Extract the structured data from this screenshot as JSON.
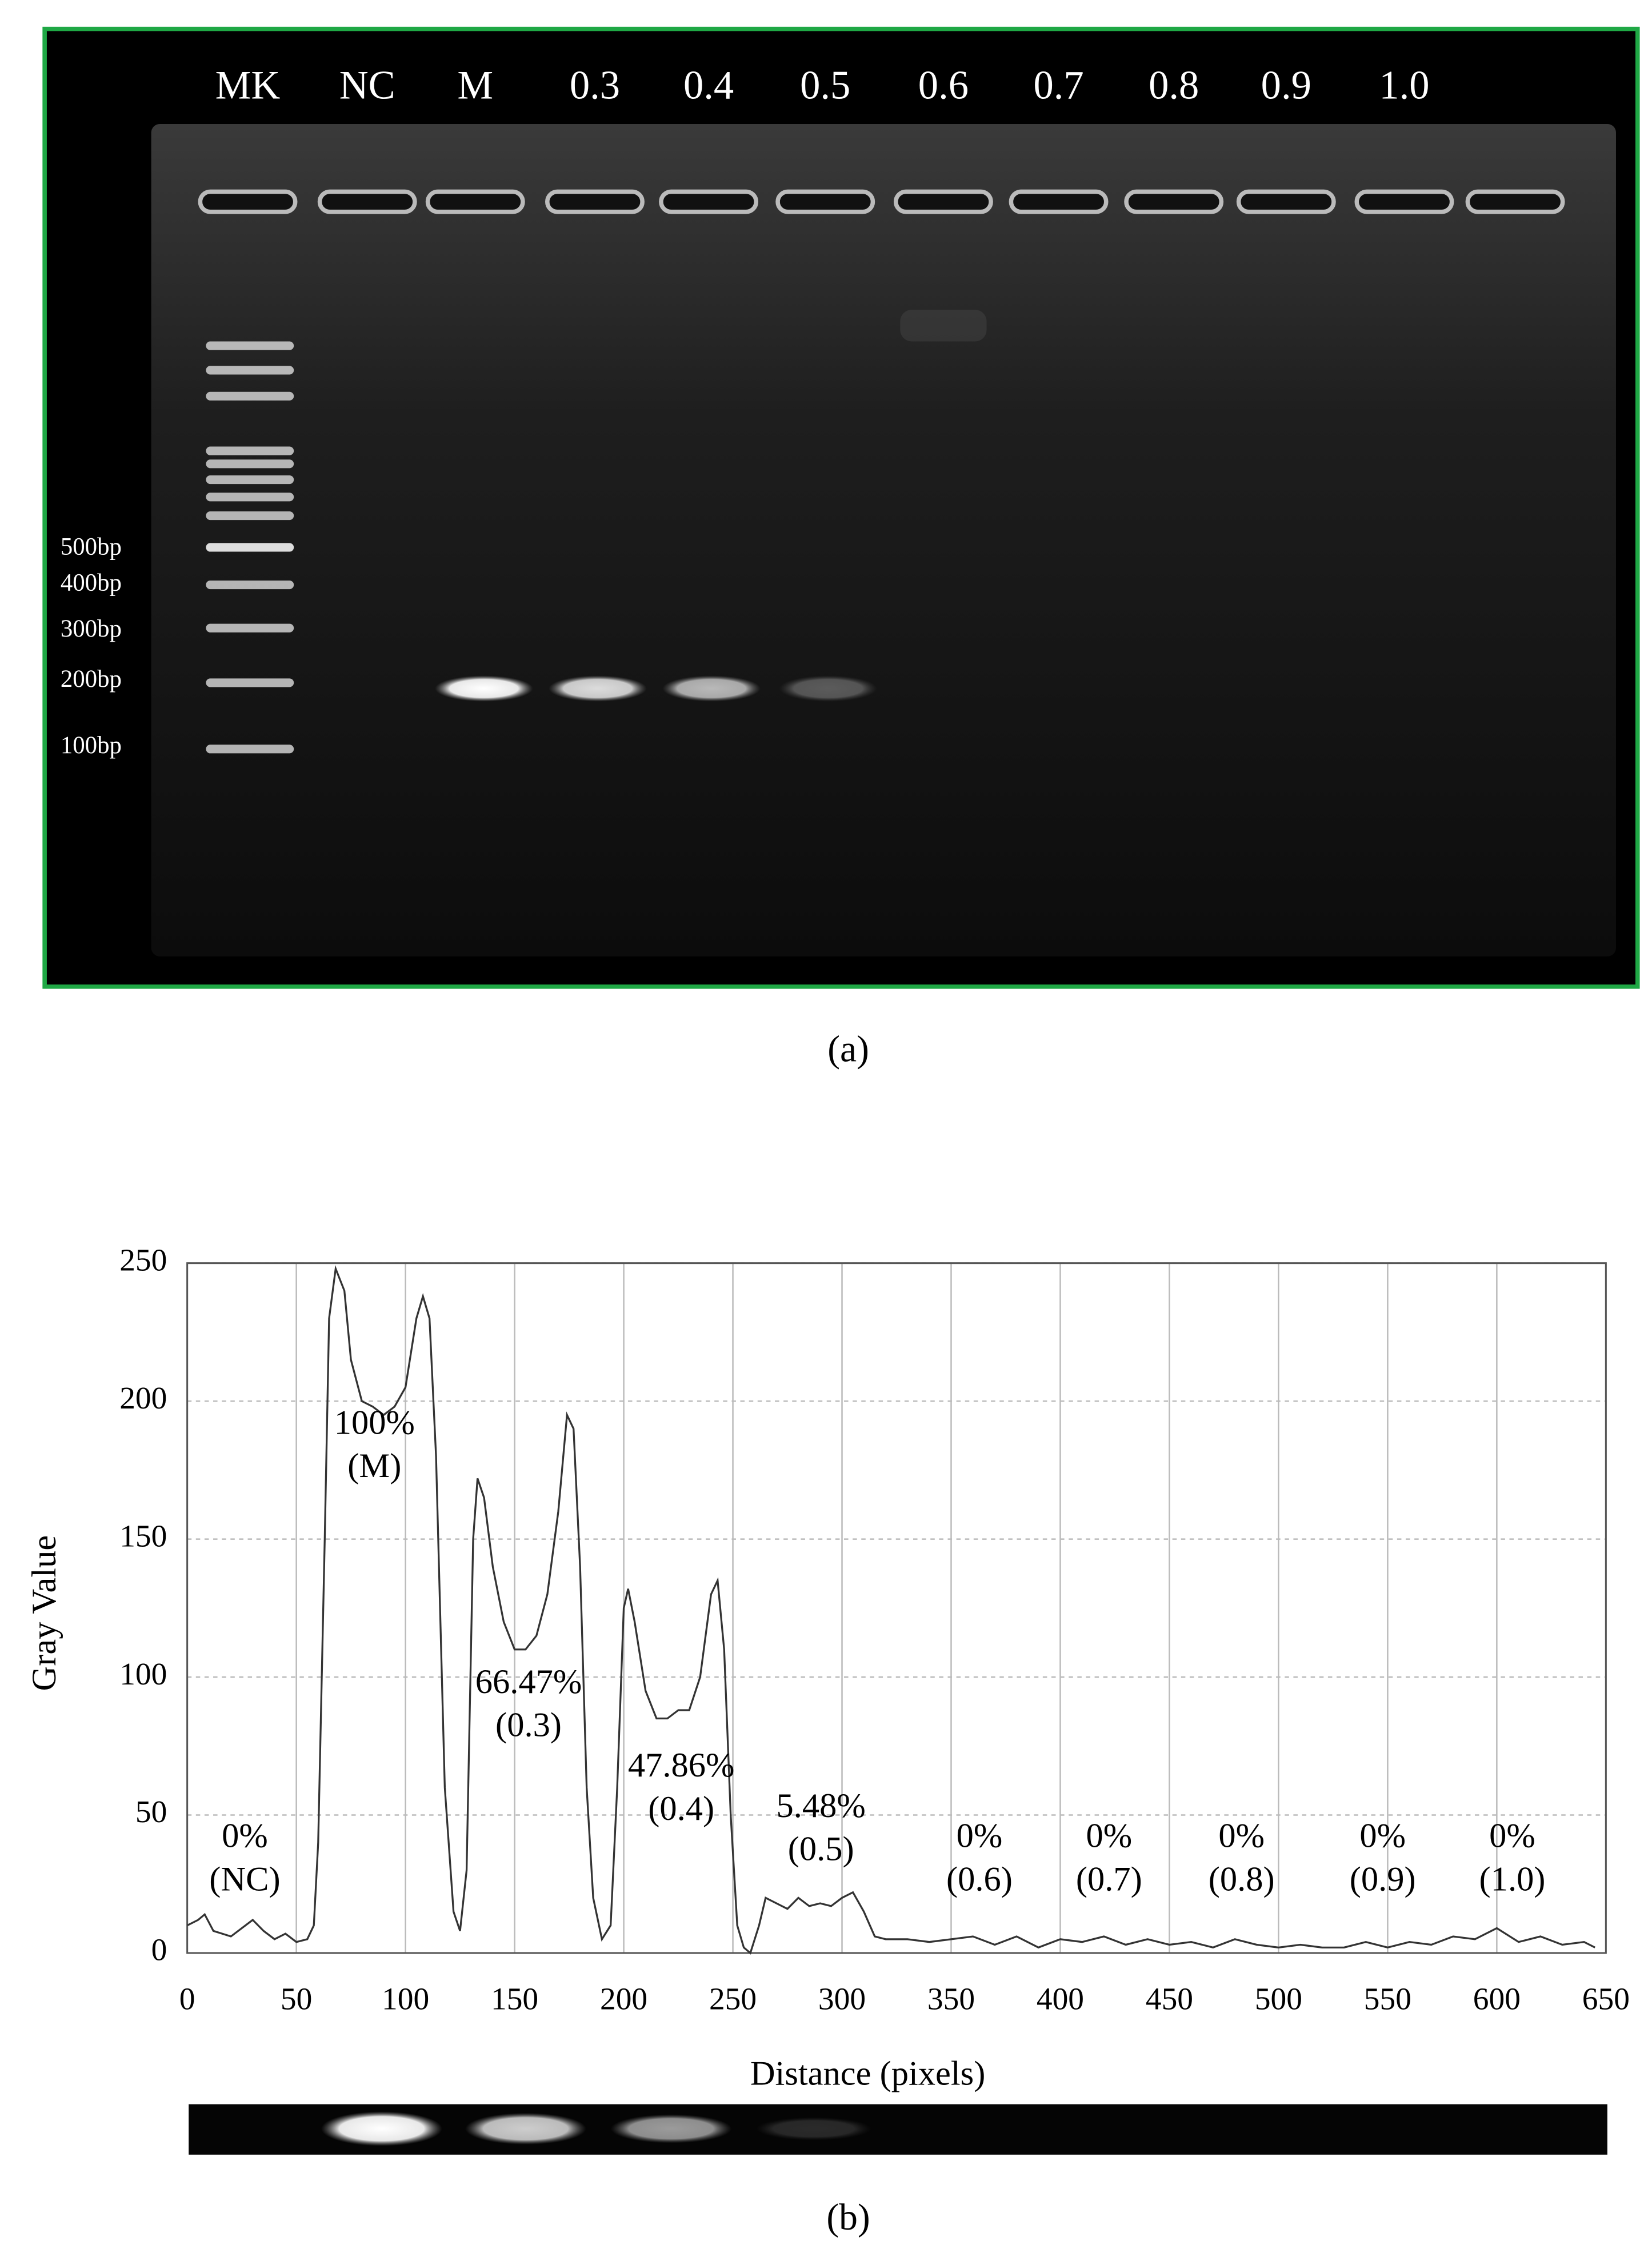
{
  "gel": {
    "lane_labels": [
      "MK",
      "NC",
      "M",
      "0.3",
      "0.4",
      "0.5",
      "0.6",
      "0.7",
      "0.8",
      "0.9",
      "1.0"
    ],
    "size_labels": [
      "500bp",
      "400bp",
      "300bp",
      "200bp",
      "100bp"
    ],
    "caption": "(a)"
  },
  "chart_data": {
    "type": "line",
    "x_label": "Distance (pixels)",
    "y_label": "Gray Value",
    "caption": "(b)",
    "color": "#333333",
    "grid": true,
    "xlim": [
      0,
      650
    ],
    "ylim": [
      0,
      250
    ],
    "xticks": [
      0,
      50,
      100,
      150,
      200,
      250,
      300,
      350,
      400,
      450,
      500,
      550,
      600,
      650
    ],
    "yticks": [
      0,
      50,
      100,
      150,
      200,
      250
    ],
    "x": [
      0,
      5,
      8,
      12,
      20,
      30,
      35,
      40,
      45,
      50,
      55,
      58,
      60,
      63,
      65,
      68,
      72,
      75,
      80,
      85,
      90,
      95,
      100,
      105,
      108,
      111,
      114,
      118,
      122,
      125,
      128,
      131,
      133,
      136,
      140,
      145,
      150,
      155,
      160,
      165,
      170,
      174,
      177,
      180,
      183,
      186,
      190,
      194,
      197,
      200,
      202,
      205,
      210,
      215,
      220,
      225,
      230,
      235,
      240,
      243,
      246,
      249,
      252,
      255,
      258,
      262,
      265,
      270,
      275,
      280,
      285,
      290,
      295,
      300,
      305,
      310,
      315,
      320,
      330,
      340,
      350,
      360,
      370,
      380,
      390,
      400,
      410,
      420,
      430,
      440,
      450,
      460,
      470,
      480,
      490,
      500,
      510,
      520,
      530,
      540,
      550,
      560,
      570,
      580,
      590,
      600,
      610,
      620,
      630,
      640,
      645
    ],
    "values": [
      10,
      12,
      14,
      8,
      6,
      12,
      8,
      5,
      7,
      4,
      5,
      10,
      40,
      150,
      230,
      248,
      240,
      215,
      200,
      198,
      195,
      198,
      205,
      230,
      238,
      230,
      180,
      60,
      15,
      8,
      30,
      150,
      172,
      165,
      140,
      120,
      110,
      110,
      115,
      130,
      160,
      195,
      190,
      140,
      60,
      20,
      5,
      10,
      60,
      125,
      132,
      120,
      95,
      85,
      85,
      88,
      88,
      100,
      130,
      135,
      110,
      50,
      10,
      2,
      0,
      10,
      20,
      18,
      16,
      20,
      17,
      18,
      17,
      20,
      22,
      15,
      6,
      5,
      5,
      4,
      5,
      6,
      3,
      6,
      2,
      5,
      4,
      6,
      3,
      5,
      3,
      4,
      2,
      5,
      3,
      2,
      3,
      2,
      2,
      4,
      2,
      4,
      3,
      6,
      5,
      9,
      4,
      6,
      3,
      4,
      2
    ],
    "annotations": [
      [
        "0%",
        "(NC)"
      ],
      [
        "100%",
        "(M)"
      ],
      [
        "66.47%",
        "(0.3)"
      ],
      [
        "47.86%",
        "(0.4)"
      ],
      [
        "5.48%",
        "(0.5)"
      ],
      [
        "0%",
        "(0.6)"
      ],
      [
        "0%",
        "(0.7)"
      ],
      [
        "0%",
        "(0.8)"
      ],
      [
        "0%",
        "(0.9)"
      ],
      [
        "0%",
        "(1.0)"
      ]
    ]
  }
}
